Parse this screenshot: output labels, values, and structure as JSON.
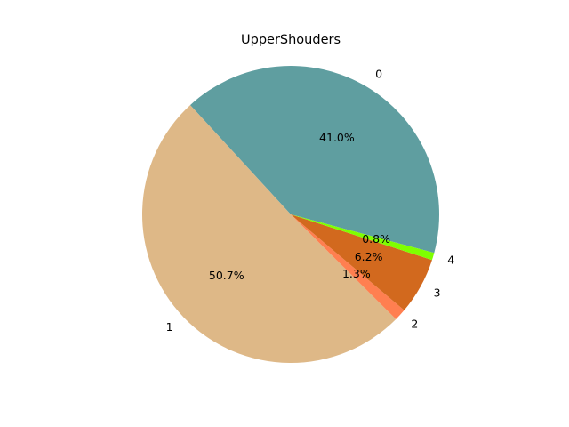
{
  "chart_data": {
    "type": "pie",
    "title": "UpperShouders",
    "slices": [
      {
        "label": "0",
        "value": 41.0,
        "pct_label": "41.0%",
        "color": "#5f9ea0"
      },
      {
        "label": "1",
        "value": 50.7,
        "pct_label": "50.7%",
        "color": "#deb887"
      },
      {
        "label": "2",
        "value": 1.3,
        "pct_label": "1.3%",
        "color": "#ff7f50"
      },
      {
        "label": "3",
        "value": 6.2,
        "pct_label": "6.2%",
        "color": "#d2691e"
      },
      {
        "label": "4",
        "value": 0.8,
        "pct_label": "0.8%",
        "color": "#7fff00"
      }
    ],
    "legend": "none",
    "grid": false
  }
}
